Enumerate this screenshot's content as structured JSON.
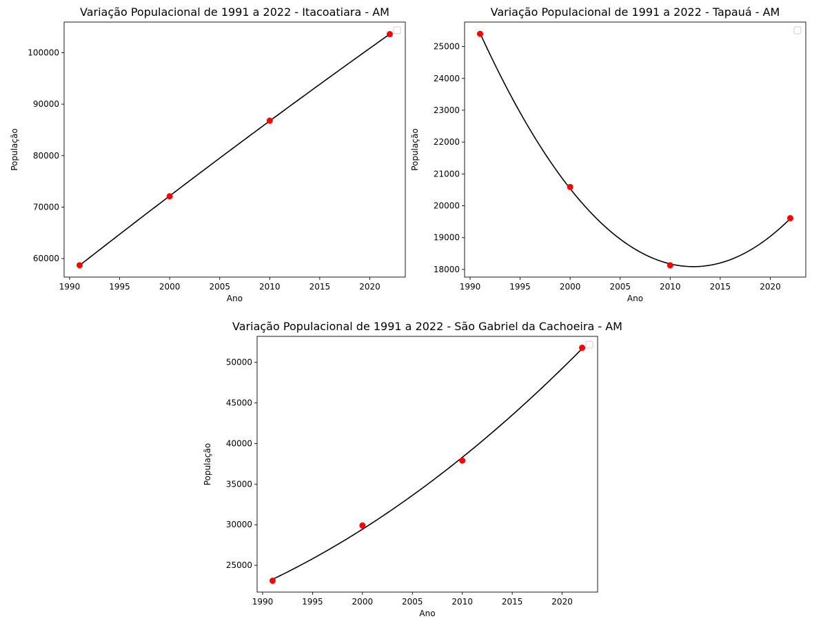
{
  "colors": {
    "curve": "#000000",
    "points": "#ff0000",
    "background": "#ffffff",
    "axes": "#000000"
  },
  "chart_data": [
    {
      "type": "scatter",
      "title": "Variação Populacional de 1991 a 2022 - Itacoatiara - AM",
      "xlabel": "Ano",
      "ylabel": "População",
      "xlim": [
        1989.45,
        2023.55
      ],
      "ylim": [
        56400,
        105950
      ],
      "xticks": [
        "1990",
        "1995",
        "2000",
        "2005",
        "2010",
        "2015",
        "2020"
      ],
      "yticks": [
        "60000",
        "70000",
        "80000",
        "90000",
        "100000"
      ],
      "x": [
        1991,
        2000,
        2010,
        2022
      ],
      "y": [
        58700,
        72100,
        86800,
        103600
      ],
      "fit_degree": 2,
      "legend": "top-right",
      "legend_entries": [],
      "grid": false
    },
    {
      "type": "scatter",
      "title": "Variação Populacional de 1991 a 2022 - Tapauá - AM",
      "xlabel": "Ano",
      "ylabel": "População",
      "xlim": [
        1989.45,
        2023.55
      ],
      "ylim": [
        17760,
        25770
      ],
      "xticks": [
        "1990",
        "1995",
        "2000",
        "2005",
        "2010",
        "2015",
        "2020"
      ],
      "yticks": [
        "18000",
        "19000",
        "20000",
        "21000",
        "22000",
        "23000",
        "24000",
        "25000"
      ],
      "x": [
        1991,
        2000,
        2010,
        2022
      ],
      "y": [
        25400,
        20590,
        18130,
        19610
      ],
      "fit_degree": 2,
      "legend": "top-right",
      "legend_entries": [],
      "grid": false
    },
    {
      "type": "scatter",
      "title": "Variação Populacional de 1991 a 2022 - São Gabriel da Cachoeira - AM",
      "xlabel": "Ano",
      "ylabel": "População",
      "xlim": [
        1989.45,
        2023.55
      ],
      "ylim": [
        21700,
        53200
      ],
      "xticks": [
        "1990",
        "1995",
        "2000",
        "2005",
        "2010",
        "2015",
        "2020"
      ],
      "yticks": [
        "25000",
        "30000",
        "35000",
        "40000",
        "45000",
        "50000"
      ],
      "x": [
        1991,
        2000,
        2010,
        2022
      ],
      "y": [
        23100,
        29900,
        37900,
        51800
      ],
      "fit_degree": 2,
      "legend": "top-right",
      "legend_entries": [],
      "grid": false
    }
  ]
}
